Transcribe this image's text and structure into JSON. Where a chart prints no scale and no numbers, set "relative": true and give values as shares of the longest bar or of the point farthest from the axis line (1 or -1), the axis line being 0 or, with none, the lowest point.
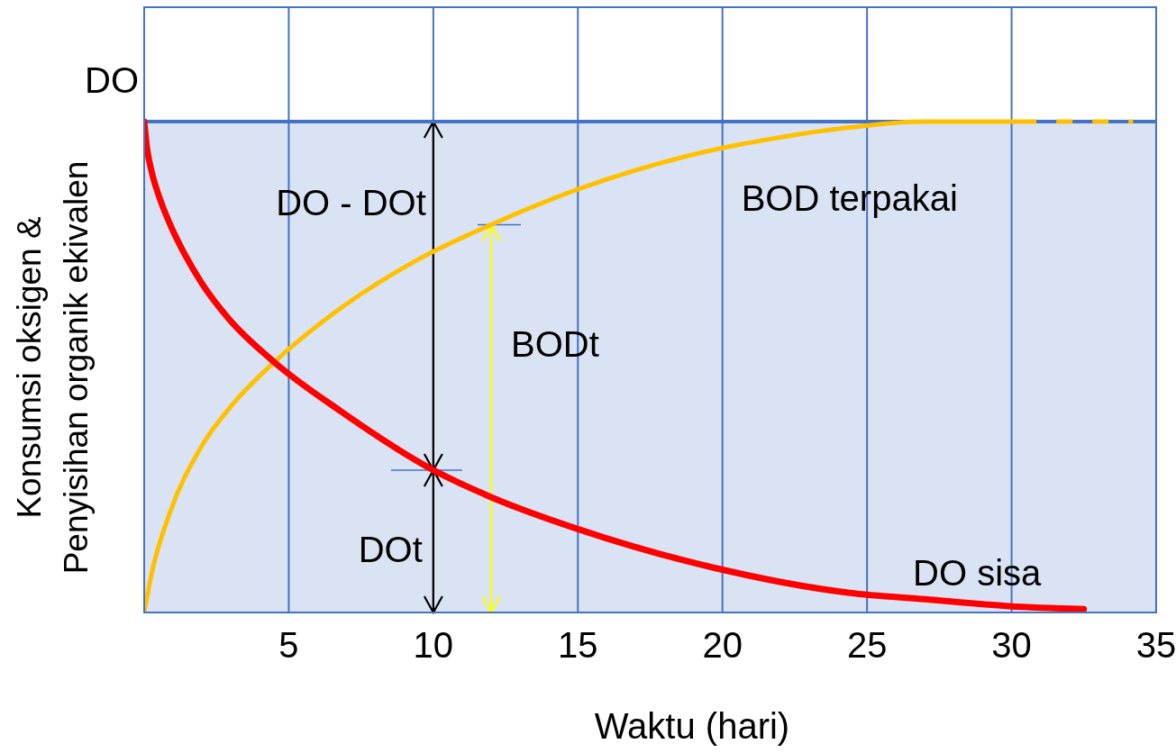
{
  "chart_data": {
    "type": "line",
    "xlabel": "Waktu (hari)",
    "ylabel": "Konsumsi oksigen &\nPenyisihan organik ekivalen",
    "relative": true,
    "xlim": [
      0,
      35
    ],
    "xticks": [
      5,
      10,
      15,
      20,
      25,
      30,
      35
    ],
    "grid": "x",
    "series": [
      {
        "name": "BOD terpakai",
        "color": "#ffc000",
        "x": [
          0,
          0.26,
          0.9,
          1.96,
          3.15,
          4.5,
          6.8,
          9.5,
          12,
          15,
          19.5,
          22,
          24.4,
          27,
          30.3
        ],
        "values": [
          0,
          0.08,
          0.205,
          0.336,
          0.43,
          0.51,
          0.62,
          0.72,
          0.79,
          0.862,
          0.94,
          0.968,
          0.988,
          1,
          1
        ]
      },
      {
        "color": "#ffc000",
        "line_style": "dashed",
        "x": [
          30.3,
          34.2
        ],
        "values": [
          1,
          1
        ]
      },
      {
        "name": "DO sisa",
        "color": "#ff0000",
        "x": [
          0,
          0.1,
          0.25,
          0.5,
          0.9,
          1.4,
          2,
          2.9,
          4.5,
          6.8,
          10,
          12,
          15,
          19.5,
          24.4,
          27,
          29.9,
          32.5
        ],
        "values": [
          1,
          0.945,
          0.9,
          0.85,
          0.79,
          0.73,
          0.67,
          0.6,
          0.51,
          0.41,
          0.29,
          0.235,
          0.17,
          0.094,
          0.04,
          0.027,
          0.013,
          0.007
        ]
      }
    ],
    "ref_lines": [
      {
        "axis": "y",
        "value": 1,
        "label": "DO",
        "color": "#4472c4"
      }
    ],
    "bands": [
      {
        "axis": "y",
        "from": 0,
        "to": 1,
        "color": "#dae3f3"
      }
    ],
    "annotations": [
      "DO - DOt",
      "DOt",
      "BODt"
    ]
  }
}
